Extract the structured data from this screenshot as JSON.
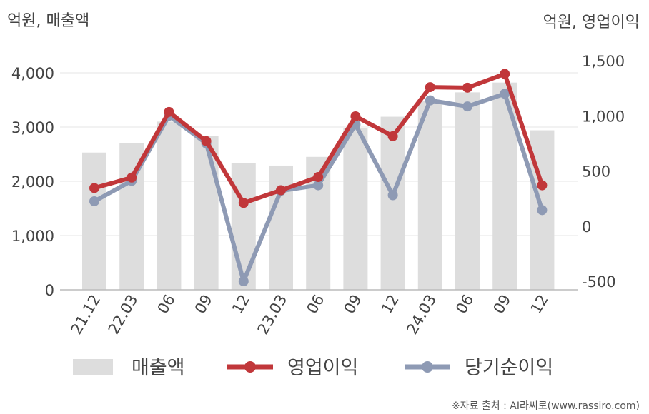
{
  "chart_data": {
    "type": "bar",
    "left_unit": "억원, 매출액",
    "right_unit": "억원, 영업이익",
    "categories": [
      "21.12",
      "22.03",
      "06",
      "09",
      "12",
      "23.03",
      "06",
      "09",
      "12",
      "24.03",
      "06",
      "09",
      "12"
    ],
    "left_axis": {
      "ylim": [
        0,
        4000
      ],
      "ticks": [
        "0",
        "1,000",
        "2,000",
        "3,000",
        "4,000"
      ],
      "tick_values": [
        0,
        1000,
        2000,
        3000,
        4000
      ]
    },
    "right_axis": {
      "ylim": [
        -500,
        1500
      ],
      "ticks": [
        "-500",
        "0",
        "500",
        "1,000",
        "1,500"
      ],
      "tick_values": [
        -500,
        0,
        500,
        1000,
        1500
      ]
    },
    "grid": true,
    "legend_position": "bottom",
    "series": [
      {
        "name": "매출액",
        "type": "bar",
        "axis": "left",
        "color": "#dddddd",
        "values": [
          2530,
          2700,
          3100,
          2840,
          2330,
          2290,
          2450,
          2980,
          3190,
          3480,
          3640,
          3820,
          2940
        ]
      },
      {
        "name": "영업이익",
        "type": "line",
        "axis": "right",
        "color": "#c1373a",
        "values": [
          345,
          440,
          1035,
          770,
          210,
          325,
          445,
          995,
          815,
          1260,
          1255,
          1380,
          370
        ]
      },
      {
        "name": "당기순이익",
        "type": "line",
        "axis": "right",
        "color": "#8e9ab4",
        "values": [
          225,
          410,
          1000,
          750,
          -500,
          320,
          370,
          920,
          280,
          1140,
          1085,
          1200,
          145
        ]
      }
    ]
  },
  "source": "※자료 출처 : AI라씨로(www.rassiro.com)"
}
